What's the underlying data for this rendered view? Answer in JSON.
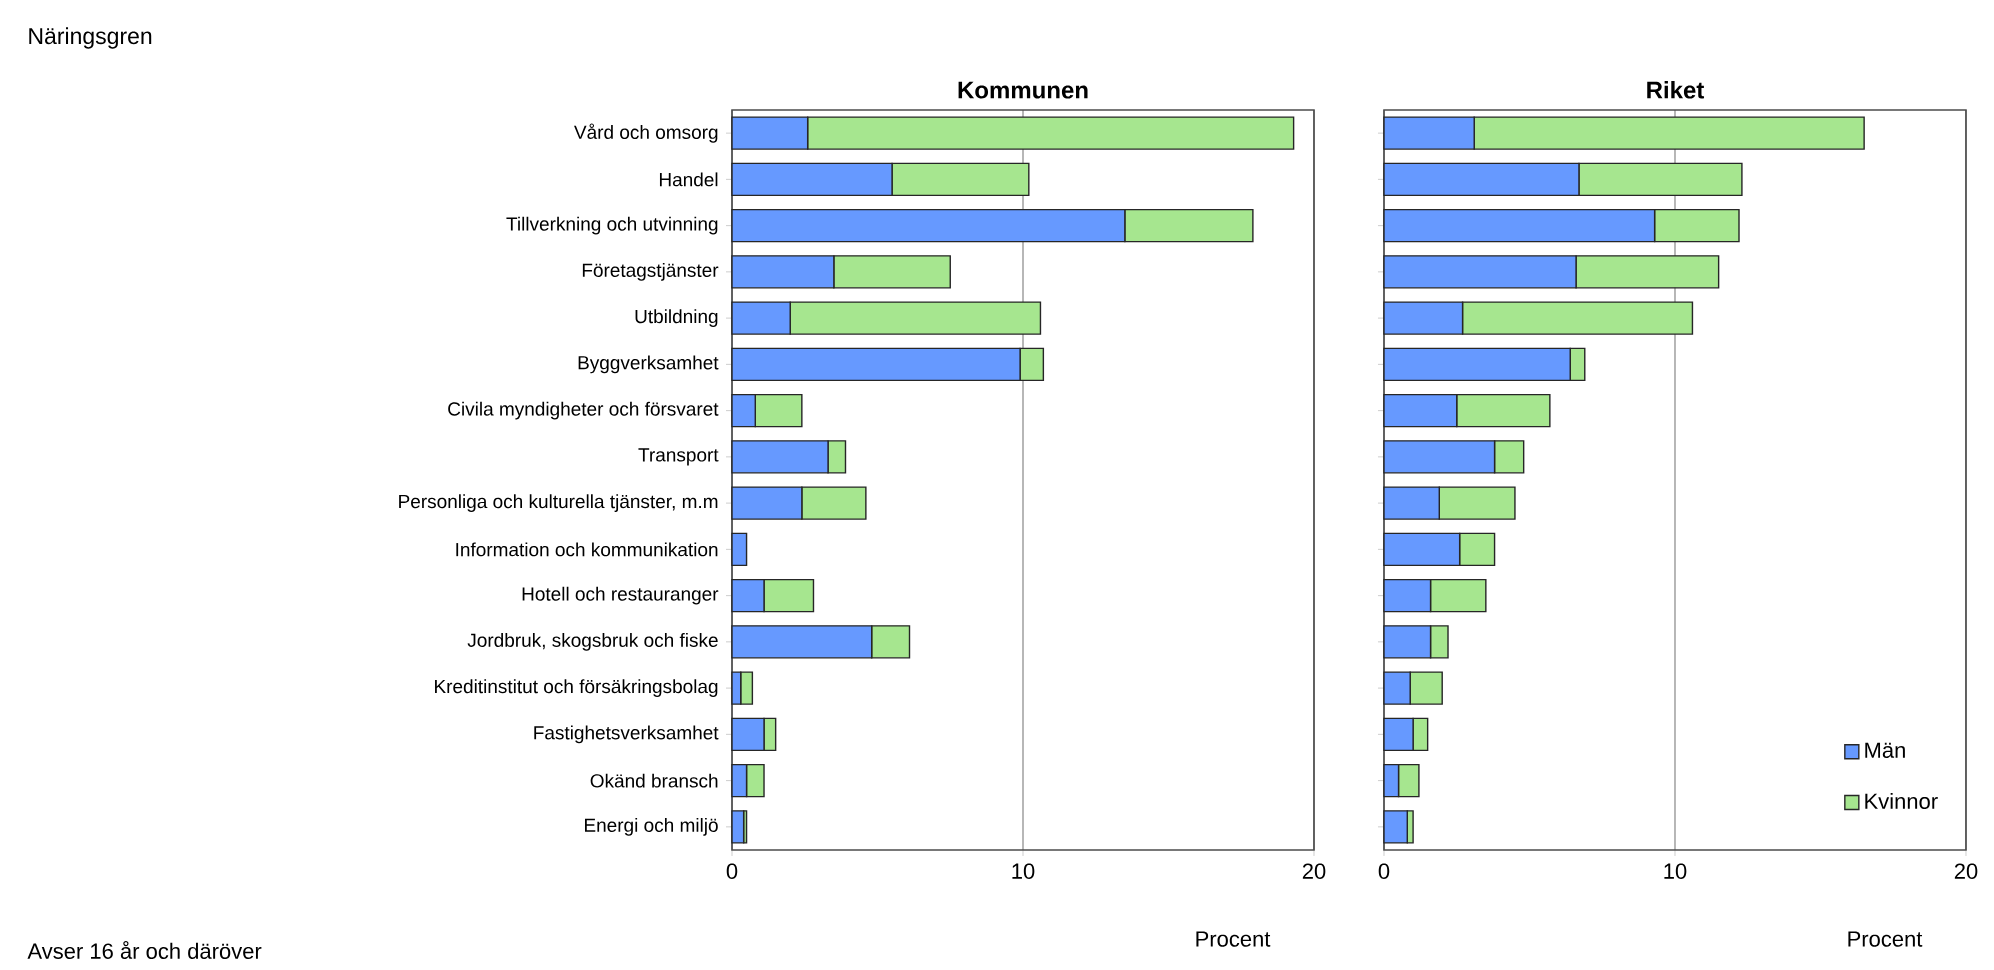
{
  "chart_data": [
    {
      "type": "bar",
      "orientation": "horizontal",
      "stacked": true,
      "title": "Kommunen",
      "xlabel": "Procent",
      "ylabel": "Näringsgren",
      "annotations": [
        "Avser 16 år och däröver"
      ],
      "categories": [
        "Vård och omsorg",
        "Handel",
        "Tillverkning och utvinning",
        "Företagstjänster",
        "Utbildning",
        "Byggverksamhet",
        "Civila myndigheter och försvaret",
        "Transport",
        "Personliga och kulturella tjänster, m.m",
        "Information och kommunikation",
        "Hotell och restauranger",
        "Jordbruk, skogsbruk och fiske",
        "Kreditinstitut och försäkringsbolag",
        "Fastighetsverksamhet",
        "Okänd bransch",
        "Energi och miljö"
      ],
      "series": [
        {
          "color": "#6699ff",
          "values": [
            2.6,
            5.5,
            13.5,
            3.5,
            2.0,
            9.9,
            0.8,
            3.3,
            2.4,
            0.5,
            1.1,
            4.8,
            0.3,
            1.1,
            0.5,
            0.4
          ]
        },
        {
          "color": "#a6e68f",
          "values": [
            16.7,
            4.7,
            4.4,
            4.0,
            8.6,
            0.8,
            1.6,
            0.6,
            2.2,
            0.0,
            1.7,
            1.3,
            0.4,
            0.4,
            0.6,
            0.1
          ]
        }
      ],
      "xlim": [
        0,
        20
      ],
      "xticks": [
        0,
        10,
        20
      ],
      "grid": "x"
    },
    {
      "type": "bar",
      "orientation": "horizontal",
      "stacked": true,
      "title": "Riket",
      "xlabel": "Procent",
      "tick_labels": "x",
      "legend": "bottom right",
      "categories": [
        null,
        null,
        null,
        null,
        null,
        null,
        null,
        null,
        null,
        null,
        null,
        null,
        null,
        null,
        null,
        null
      ],
      "series": [
        {
          "name": "Män",
          "color": "#6699ff",
          "values": [
            3.1,
            6.7,
            9.3,
            6.6,
            2.7,
            6.4,
            2.5,
            3.8,
            1.9,
            2.6,
            1.6,
            1.6,
            0.9,
            1.0,
            0.5,
            0.8
          ]
        },
        {
          "name": "Kvinnor",
          "color": "#a6e68f",
          "values": [
            13.4,
            5.6,
            2.9,
            4.9,
            7.9,
            0.5,
            3.2,
            1.0,
            2.6,
            1.2,
            1.9,
            0.6,
            1.1,
            0.5,
            0.7,
            0.2
          ]
        }
      ],
      "xlim": [
        0,
        20
      ],
      "xticks": [
        0,
        10,
        20
      ],
      "grid": "x"
    }
  ]
}
